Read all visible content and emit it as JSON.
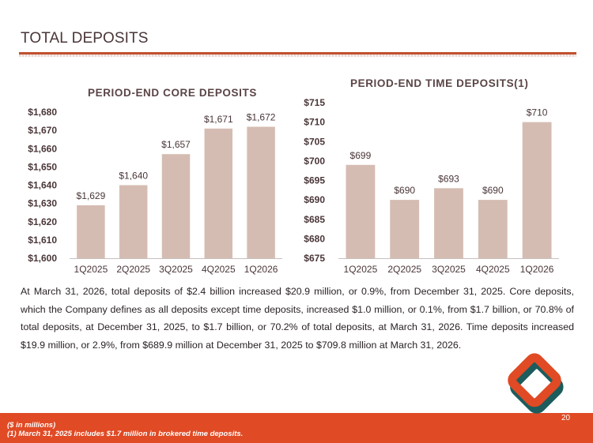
{
  "page": {
    "title": "TOTAL DEPOSITS",
    "page_number": "20"
  },
  "colors": {
    "accent": "#e04a24",
    "rule": "#c0502f",
    "bar": "#d5bcb2",
    "teal": "#1d5c5c",
    "text": "#4a3638"
  },
  "body_text": "At March 31, 2026, total deposits of $2.4 billion increased $20.9 million, or 0.9%, from December 31, 2025. Core deposits, which the Company defines as all deposits except time deposits, increased $1.0 million, or 0.1%, from $1.7 billion, or 70.8% of total deposits, at December 31, 2025, to $1.7 billion, or 70.2% of total deposits, at March 31, 2026. Time deposits increased $19.9 million, or 2.9%, from $689.9 million at December 31, 2025 to $709.8 million at March 31, 2026.",
  "footnotes": {
    "units": "($ in millions)",
    "note1": "(1) March 31, 2025 includes $1.7 million in brokered time deposits."
  },
  "logo": {
    "icon": "diamond-logo-icon"
  },
  "chart_data": [
    {
      "type": "bar",
      "title": "PERIOD-END CORE DEPOSITS",
      "categories": [
        "1Q2025",
        "2Q2025",
        "3Q2025",
        "4Q2025",
        "1Q2026"
      ],
      "values": [
        1629,
        1640,
        1657,
        1671,
        1672
      ],
      "data_labels": [
        "$1,629",
        "$1,640",
        "$1,657",
        "$1,671",
        "$1,672"
      ],
      "yticks": [
        1600,
        1610,
        1620,
        1630,
        1640,
        1650,
        1660,
        1670,
        1680
      ],
      "ytick_labels": [
        "$1,600",
        "$1,610",
        "$1,620",
        "$1,630",
        "$1,640",
        "$1,650",
        "$1,660",
        "$1,670",
        "$1,680"
      ],
      "ylim": [
        1600,
        1680
      ],
      "xlabel": "",
      "ylabel": "",
      "grid": false,
      "legend": "none"
    },
    {
      "type": "bar",
      "title": "PERIOD-END TIME DEPOSITS(1)",
      "categories": [
        "1Q2025",
        "2Q2025",
        "3Q2025",
        "4Q2025",
        "1Q2026"
      ],
      "values": [
        699,
        690,
        693,
        690,
        710
      ],
      "data_labels": [
        "$699",
        "$690",
        "$693",
        "$690",
        "$710"
      ],
      "yticks": [
        675,
        680,
        685,
        690,
        695,
        700,
        705,
        710,
        715
      ],
      "ytick_labels": [
        "$675",
        "$680",
        "$685",
        "$690",
        "$695",
        "$700",
        "$705",
        "$710",
        "$715"
      ],
      "ylim": [
        675,
        715
      ],
      "xlabel": "",
      "ylabel": "",
      "grid": false,
      "legend": "none"
    }
  ]
}
